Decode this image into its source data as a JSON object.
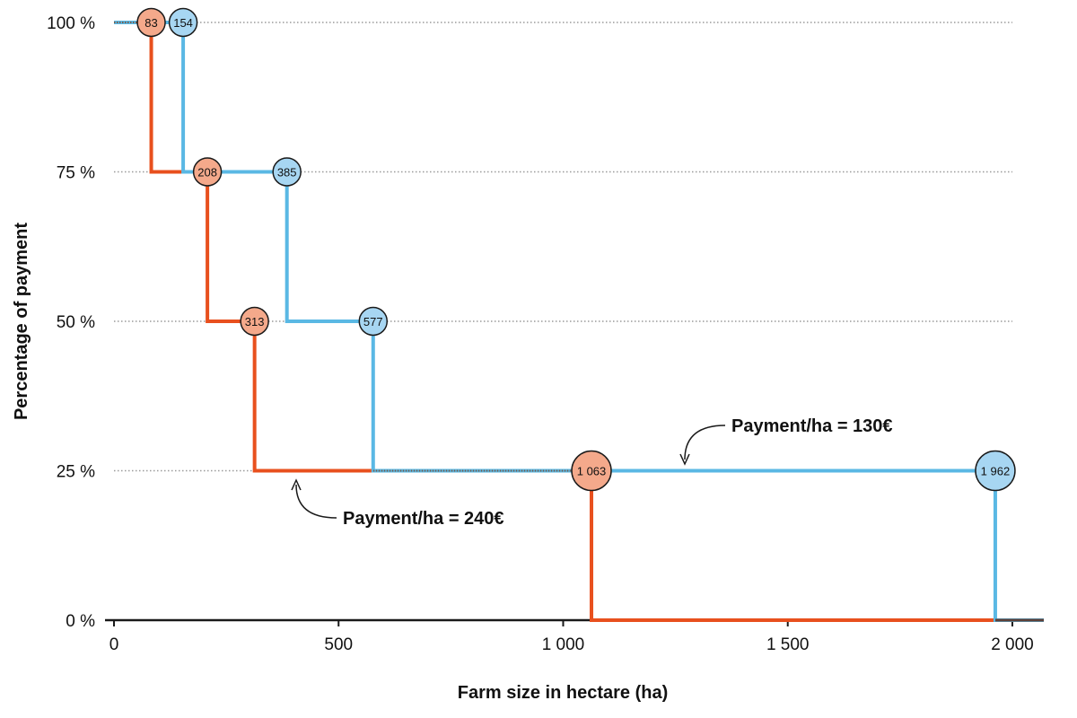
{
  "chart_data": {
    "type": "line",
    "xlabel": "Farm size in hectare (ha)",
    "ylabel": "Percentage of payment",
    "xlim": [
      0,
      2070
    ],
    "ylim": [
      0,
      100
    ],
    "x_ticks": [
      0,
      500,
      1000,
      1500,
      2000
    ],
    "x_tick_labels": [
      "0",
      "500",
      "1 000",
      "1 500",
      "2 000"
    ],
    "y_ticks": [
      0,
      25,
      50,
      75,
      100
    ],
    "y_tick_labels": [
      "0 %",
      "25 %",
      "50 %",
      "75 %",
      "100 %"
    ],
    "grid": "horizontal dotted",
    "series": [
      {
        "color": "#e8501e",
        "marker_color": "#f4a98b",
        "steps": [
          {
            "x_end": 83,
            "percent": 100
          },
          {
            "x_end": 208,
            "percent": 75
          },
          {
            "x_end": 313,
            "percent": 50
          },
          {
            "x_end": 1063,
            "percent": 25
          },
          {
            "x_end": 2070,
            "percent": 0
          }
        ],
        "markers": [
          {
            "x": 83,
            "y": 100,
            "label": "83"
          },
          {
            "x": 208,
            "y": 75,
            "label": "208"
          },
          {
            "x": 313,
            "y": 50,
            "label": "313"
          },
          {
            "x": 1063,
            "y": 25,
            "label": "1 063",
            "large": true
          }
        ]
      },
      {
        "color": "#5ab8e4",
        "marker_color": "#a7d6f2",
        "steps": [
          {
            "x_end": 154,
            "percent": 100
          },
          {
            "x_end": 385,
            "percent": 75
          },
          {
            "x_end": 577,
            "percent": 50
          },
          {
            "x_end": 1962,
            "percent": 25
          },
          {
            "x_end": 2070,
            "percent": 0
          }
        ],
        "markers": [
          {
            "x": 154,
            "y": 100,
            "label": "154"
          },
          {
            "x": 385,
            "y": 75,
            "label": "385"
          },
          {
            "x": 577,
            "y": 50,
            "label": "577"
          },
          {
            "x": 1962,
            "y": 25,
            "label": "1 962",
            "large": true
          }
        ]
      }
    ],
    "annotations": [
      {
        "text": "Payment/ha = 240€",
        "x": 410,
        "y": 25,
        "placement": "below"
      },
      {
        "text": "Payment/ha = 130€",
        "x": 1280,
        "y": 25,
        "placement": "above"
      }
    ]
  }
}
